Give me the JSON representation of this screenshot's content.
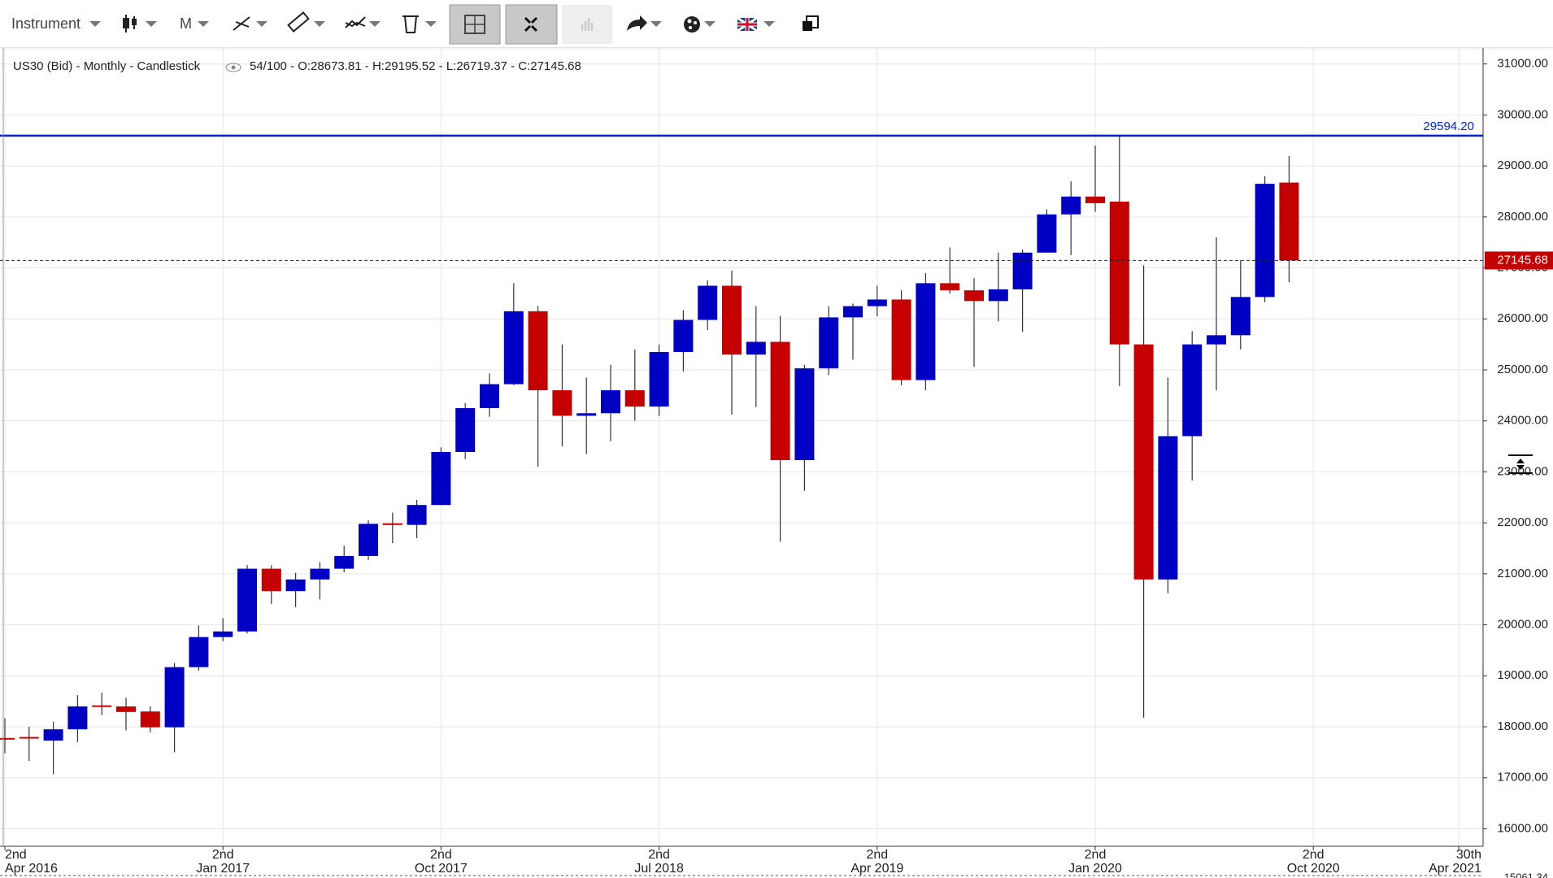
{
  "toolbar": {
    "instrument": "Instrument",
    "period": "M"
  },
  "chart_data": {
    "type": "candlestick",
    "title": "US30 (Bid) - Monthly - Candlestick",
    "subtitle": "54/100 - O:28673.81 - H:29195.52 - L:26719.37 - C:27145.68",
    "x": [
      "2016-04",
      "2016-05",
      "2016-06",
      "2016-07",
      "2016-08",
      "2016-09",
      "2016-10",
      "2016-11",
      "2016-12",
      "2017-01",
      "2017-02",
      "2017-03",
      "2017-04",
      "2017-05",
      "2017-06",
      "2017-07",
      "2017-08",
      "2017-09",
      "2017-10",
      "2017-11",
      "2017-12",
      "2018-01",
      "2018-02",
      "2018-03",
      "2018-04",
      "2018-05",
      "2018-06",
      "2018-07",
      "2018-08",
      "2018-09",
      "2018-10",
      "2018-11",
      "2018-12",
      "2019-01",
      "2019-02",
      "2019-03",
      "2019-04",
      "2019-05",
      "2019-06",
      "2019-07",
      "2019-08",
      "2019-09",
      "2019-10",
      "2019-11",
      "2019-12",
      "2020-01",
      "2020-02",
      "2020-03",
      "2020-04",
      "2020-05",
      "2020-06",
      "2020-07",
      "2020-08",
      "2020-09"
    ],
    "open": [
      17780,
      17800,
      17730,
      17950,
      18420,
      18400,
      18300,
      17990,
      19170,
      19760,
      19870,
      21100,
      20660,
      20890,
      21100,
      21350,
      21990,
      21960,
      22350,
      23390,
      24250,
      24720,
      26150,
      24600,
      24100,
      24150,
      24600,
      24280,
      25350,
      25980,
      26650,
      25300,
      25550,
      23230,
      25030,
      26030,
      26250,
      26380,
      24800,
      26700,
      26560,
      26350,
      26580,
      27300,
      28050,
      28400,
      28300,
      25500,
      20890,
      23700,
      25500,
      25680,
      26430,
      28673.81
    ],
    "high": [
      18170,
      18000,
      18100,
      18620,
      18670,
      18570,
      18400,
      19250,
      19990,
      20130,
      21170,
      21170,
      21020,
      21230,
      21550,
      22050,
      22200,
      22450,
      23480,
      24350,
      24930,
      26700,
      26250,
      25500,
      24850,
      25100,
      25400,
      25500,
      26170,
      26760,
      26950,
      26250,
      26060,
      25100,
      26250,
      26300,
      26650,
      26560,
      26900,
      27400,
      26800,
      27300,
      27360,
      28150,
      28700,
      29400,
      29594.2,
      27050,
      24850,
      25760,
      27600,
      27150,
      28800,
      29195.52
    ],
    "low": [
      17480,
      17330,
      17070,
      17700,
      18230,
      17930,
      17890,
      17500,
      19100,
      19680,
      19830,
      20410,
      20350,
      20500,
      21030,
      21270,
      21600,
      21700,
      22400,
      23250,
      24080,
      24700,
      23100,
      23500,
      23350,
      23600,
      24000,
      24100,
      24970,
      25780,
      24120,
      24270,
      21630,
      22630,
      24900,
      25200,
      26050,
      24700,
      24600,
      26500,
      25060,
      25950,
      25750,
      27300,
      27250,
      28100,
      24680,
      18180,
      20620,
      22830,
      24600,
      25400,
      26330,
      26719.37
    ],
    "close": [
      17770,
      17780,
      17950,
      18400,
      18400,
      18290,
      17990,
      19170,
      19760,
      19870,
      21100,
      20660,
      20890,
      21100,
      21350,
      21980,
      21960,
      22350,
      23390,
      24250,
      24720,
      26150,
      24600,
      24100,
      24150,
      24600,
      24280,
      25350,
      25980,
      26650,
      25300,
      25550,
      23230,
      25030,
      26030,
      26250,
      26380,
      24800,
      26700,
      26560,
      26350,
      26580,
      27300,
      28050,
      28400,
      28270,
      25500,
      20890,
      23700,
      25500,
      25680,
      26430,
      28650,
      27145.68
    ],
    "up_color": "#0000c4",
    "down_color": "#c40000",
    "ylim": [
      15656,
      31330
    ],
    "yticks": [
      {
        "value": 16000,
        "label": "16000.00"
      },
      {
        "value": 17000,
        "label": "17000.00"
      },
      {
        "value": 18000,
        "label": "18000.00"
      },
      {
        "value": 19000,
        "label": "19000.00"
      },
      {
        "value": 20000,
        "label": "20000.00"
      },
      {
        "value": 21000,
        "label": "21000.00"
      },
      {
        "value": 22000,
        "label": "22000.00"
      },
      {
        "value": 23000,
        "label": "23000.00"
      },
      {
        "value": 24000,
        "label": "24000.00"
      },
      {
        "value": 25000,
        "label": "25000.00"
      },
      {
        "value": 26000,
        "label": "26000.00"
      },
      {
        "value": 27000,
        "label": "27000.00"
      },
      {
        "value": 28000,
        "label": "28000.00"
      },
      {
        "value": 29000,
        "label": "29000.00"
      },
      {
        "value": 30000,
        "label": "30000.00"
      },
      {
        "value": 31000,
        "label": "31000.00"
      }
    ],
    "xticks": [
      {
        "value": "2016-04",
        "label": [
          "2nd",
          "Apr 2016"
        ]
      },
      {
        "value": "2017-01",
        "label": [
          "2nd",
          "Jan 2017"
        ]
      },
      {
        "value": "2017-10",
        "label": [
          "2nd",
          "Oct 2017"
        ]
      },
      {
        "value": "2018-07",
        "label": [
          "2nd",
          "Jul 2018"
        ]
      },
      {
        "value": "2019-04",
        "label": [
          "2nd",
          "Apr 2019"
        ]
      },
      {
        "value": "2020-01",
        "label": [
          "2nd",
          "Jan 2020"
        ]
      },
      {
        "value": "2020-10",
        "label": [
          "2nd",
          "Oct 2020"
        ]
      },
      {
        "value": "2021-04",
        "label": [
          "30th",
          "Apr 2021"
        ]
      }
    ],
    "grid": true,
    "hline": {
      "value": 29594.2,
      "label": "29594.20",
      "color": "#0022dd"
    },
    "last_price": {
      "value": 27145.68,
      "label": "27145.68",
      "color": "#c40000"
    },
    "cursor_label": "15061.34"
  }
}
